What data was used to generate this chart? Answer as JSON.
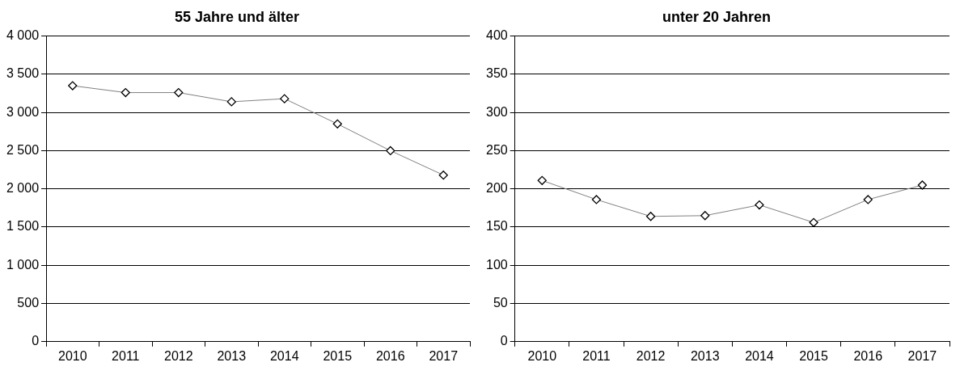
{
  "chart_data": [
    {
      "type": "line",
      "title": "55 Jahre und älter",
      "categories": [
        "2010",
        "2011",
        "2012",
        "2013",
        "2014",
        "2015",
        "2016",
        "2017"
      ],
      "series": [
        {
          "color": "#000000",
          "values": [
            3350,
            3260,
            3260,
            3140,
            3180,
            2850,
            2500,
            2180
          ]
        }
      ],
      "ylim": [
        0,
        4000
      ],
      "yticks": [
        0,
        500,
        {
          "value": 1000,
          "label": "1 000"
        },
        {
          "value": 1500,
          "label": "1 500"
        },
        {
          "value": 2000,
          "label": "2 000"
        },
        {
          "value": 2500,
          "label": "2 500"
        },
        {
          "value": 3000,
          "label": "3 000"
        },
        {
          "value": 3500,
          "label": "3 500"
        },
        {
          "value": 4000,
          "label": "4 000"
        }
      ],
      "grid": "y",
      "legend": false,
      "marker": "diamond",
      "line_style": "solid"
    },
    {
      "type": "line",
      "title": "unter 20 Jahren",
      "categories": [
        "2010",
        "2011",
        "2012",
        "2013",
        "2014",
        "2015",
        "2016",
        "2017"
      ],
      "series": [
        {
          "color": "#000000",
          "values": [
            211,
            186,
            164,
            165,
            179,
            156,
            186,
            205
          ]
        }
      ],
      "ylim": [
        0,
        400
      ],
      "yticks": [
        0,
        50,
        100,
        150,
        200,
        250,
        300,
        350,
        400
      ],
      "grid": "y",
      "legend": false,
      "marker": "diamond",
      "line_style": "solid"
    }
  ]
}
